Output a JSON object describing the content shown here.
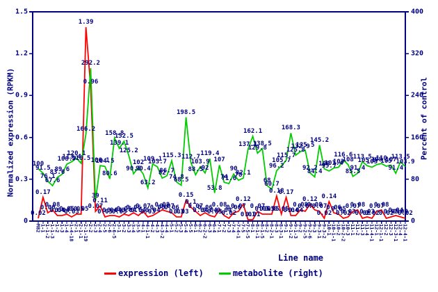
{
  "figure": {
    "background": "#ffffff",
    "axis_color": "#000080",
    "label_color": "#000080"
  },
  "chart_data": {
    "type": "line",
    "title": "",
    "x_axis": {
      "label": "Line name",
      "categories": [
        "M82",
        "1-1",
        "1-1-2",
        "1-1-3",
        "1-2",
        "1-3",
        "1-4",
        "1-4-18",
        "2-1",
        "2-1-1",
        "2-1-19",
        "2-2",
        "2-3",
        "2-4",
        "2-5",
        "2-6",
        "2-6-5",
        "3-1",
        "3-2",
        "3-3",
        "3-4",
        "3-5",
        "4-1",
        "4-1-1",
        "4-2",
        "4-3",
        "4-3-2",
        "4-4",
        "5-1",
        "5-2",
        "5-3",
        "5-4",
        "5-5",
        "6-1",
        "6-2",
        "6-2-2",
        "6-3",
        "6-4",
        "7-1",
        "7-2",
        "7-3",
        "7-4",
        "7-4-1",
        "7-5",
        "7-5-5",
        "8-1",
        "8-1-1",
        "8-1-5",
        "8-2",
        "8-2-1",
        "8-3",
        "8-3-1",
        "9-1",
        "9-1-2",
        "9-1-3",
        "9-2",
        "9-2-5",
        "9-2-6",
        "9-3",
        "9-3-1",
        "9-3-2",
        "10-1",
        "10-1-1",
        "10-2",
        "10-2-2",
        "10-3",
        "11-1",
        "11-2",
        "11-3",
        "11-4",
        "11-4-1",
        "12-1",
        "12-1-1",
        "12-2",
        "12-3",
        "12-3-1",
        "12-4",
        "12-4-1"
      ]
    },
    "y_axis_left": {
      "label": "Normalized expression (RPKM)",
      "min": 0,
      "max": 1.5,
      "ticks": [
        0,
        0.3,
        0.6,
        0.9,
        1.2,
        1.5
      ]
    },
    "y_axis_right": {
      "label": "Percent of control",
      "min": 0,
      "max": 400,
      "ticks": [
        0,
        80,
        160,
        240,
        320,
        400
      ]
    },
    "grid": false,
    "point_labels": true,
    "legend_position": "bottom",
    "series": [
      {
        "name": "expression (left)",
        "axis": "left",
        "color": "#ff0000",
        "values": [
          0.02,
          0.17,
          0.06,
          0.08,
          0.04,
          0.04,
          0.05,
          0.03,
          0.05,
          0.05,
          1.39,
          0.96,
          0.07,
          0.11,
          0.03,
          0.04,
          0.04,
          0.03,
          0.05,
          0.04,
          0.06,
          0.04,
          0.07,
          0.03,
          0.04,
          0.06,
          0.08,
          0.07,
          0.06,
          0.03,
          0.03,
          0.15,
          0.1,
          0.07,
          0.04,
          0.06,
          0.04,
          0.03,
          0.08,
          0.04,
          0.02,
          0.06,
          0.07,
          0.12,
          0.01,
          0.01,
          0.07,
          0.05,
          0.05,
          0.05,
          0.18,
          0.05,
          0.17,
          0.04,
          0.04,
          0.08,
          0.07,
          0.12,
          0.08,
          0.07,
          0.02,
          0.14,
          0.06,
          0.05,
          0.02,
          0.03,
          0.07,
          0.08,
          0.02,
          0.03,
          0.02,
          0.07,
          0.08,
          0.02,
          0.03,
          0.04,
          0.03,
          0.02
        ]
      },
      {
        "name": "metabolite (right)",
        "axis": "right",
        "color": "#00cc00",
        "values": [
          100,
          91.5,
          76.1,
          67.6,
          83.6,
          89.6,
          108.7,
          113.4,
          120.1,
          110.5,
          166.2,
          292.2,
          39,
          106.1,
          104.5,
          80.6,
          158.8,
          139.1,
          152.5,
          125.2,
          90.5,
          102,
          90.4,
          63.2,
          109.1,
          103.7,
          82,
          86.7,
          115.3,
          74.8,
          68.5,
          198.5,
          112.7,
          88.5,
          103.9,
          92,
          119.4,
          53.8,
          107,
          74,
          71.6,
          90,
          78,
          82.1,
          137.1,
          162.1,
          129.8,
          138.5,
          68,
          60.7,
          96.2,
          105.7,
          115.7,
          168.3,
          125.8,
          132.9,
          135.5,
          92.2,
          84.4,
          145.2,
          100,
          95.7,
          101.4,
          103,
          116.6,
          108,
          85.5,
          91.4,
          113.5,
          105.9,
          103,
          108,
          110,
          105,
          107,
          91.4,
          113.5,
          103.9
        ]
      }
    ]
  },
  "legend": {
    "items": [
      {
        "label": "expression (left)",
        "color": "#ff0000"
      },
      {
        "label": "metabolite (right)",
        "color": "#00cc00"
      }
    ]
  }
}
